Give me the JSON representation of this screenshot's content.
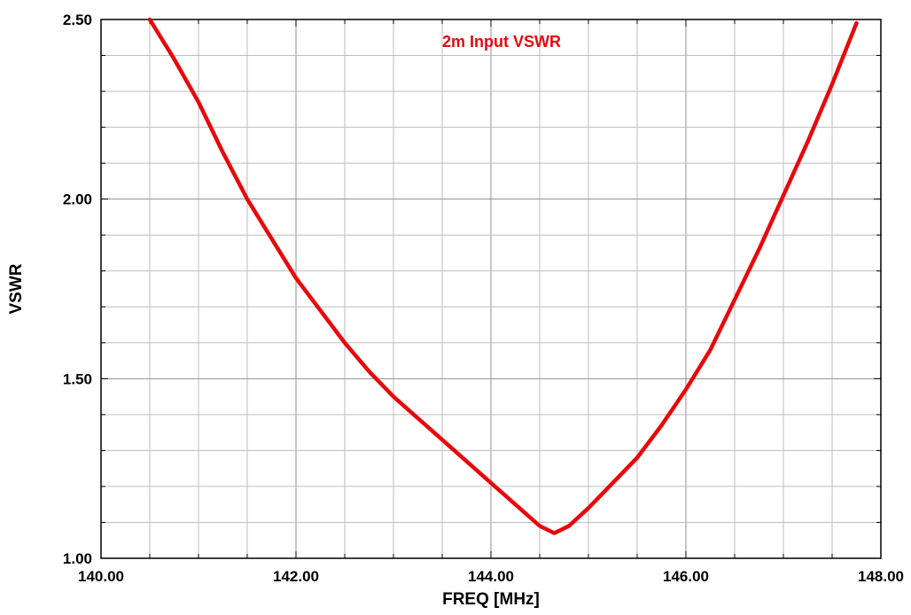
{
  "chart_data": {
    "type": "line",
    "title": "2m Input VSWR",
    "xlabel": "FREQ [MHz]",
    "ylabel": "VSWR",
    "xlim": [
      140.0,
      148.0
    ],
    "ylim": [
      1.0,
      2.5
    ],
    "x_ticks": [
      140.0,
      142.0,
      144.0,
      146.0,
      148.0
    ],
    "x_tick_labels": [
      "140.00",
      "142.00",
      "144.00",
      "146.00",
      "148.00"
    ],
    "y_ticks": [
      1.0,
      1.5,
      2.0,
      2.5
    ],
    "y_tick_labels": [
      "1.00",
      "1.50",
      "2.00",
      "2.50"
    ],
    "grid": true,
    "colors": {
      "series": "#e8080c",
      "title": "#e8080c",
      "grid": "#bdbdbd",
      "frame": "#000000"
    },
    "series": [
      {
        "x": [
          140.5,
          140.75,
          141.0,
          141.25,
          141.5,
          141.75,
          142.0,
          142.25,
          142.5,
          142.75,
          143.0,
          143.25,
          143.5,
          143.75,
          144.0,
          144.25,
          144.5,
          144.65,
          144.8,
          145.0,
          145.25,
          145.5,
          145.75,
          146.0,
          146.25,
          146.5,
          146.75,
          147.0,
          147.25,
          147.5,
          147.75
        ],
        "y": [
          2.5,
          2.39,
          2.27,
          2.13,
          2.0,
          1.89,
          1.78,
          1.69,
          1.6,
          1.52,
          1.45,
          1.39,
          1.33,
          1.27,
          1.21,
          1.15,
          1.09,
          1.07,
          1.09,
          1.14,
          1.21,
          1.28,
          1.37,
          1.47,
          1.58,
          1.72,
          1.86,
          2.01,
          2.16,
          2.32,
          2.49
        ]
      }
    ]
  }
}
